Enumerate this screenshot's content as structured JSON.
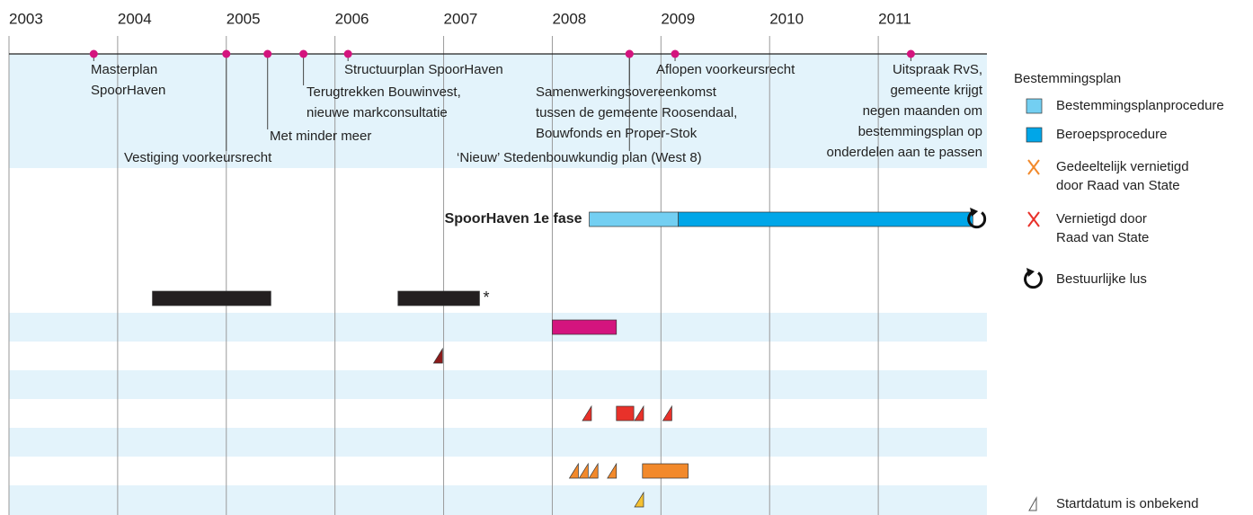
{
  "chart_data": {
    "type": "timeline",
    "xlim": [
      2003,
      2012
    ],
    "xticks": [
      2003,
      2004,
      2005,
      2006,
      2007,
      2008,
      2009,
      2010,
      2011
    ],
    "events": [
      {
        "x": 2003.78,
        "label": [
          "Masterplan",
          "SpoorHaven"
        ]
      },
      {
        "x": 2005.0,
        "label": [
          "Vestiging voorkeursrecht"
        ]
      },
      {
        "x": 2005.38,
        "label": [
          "Met minder meer"
        ]
      },
      {
        "x": 2005.71,
        "label": [
          "Terugtrekken Bouwinvest,",
          "nieuwe markconsultatie"
        ]
      },
      {
        "x": 2006.12,
        "label": [
          "Structuurplan SpoorHaven"
        ]
      },
      {
        "x": 2008.71,
        "label": [
          "Samenwerkingsovereenkomst",
          "tussen de gemeente Roosendaal,",
          "Bouwfonds en Proper-Stok"
        ]
      },
      {
        "x": 2008.71,
        "label": [
          "‘Nieuw’ Stedenbouwkundig plan (West 8)"
        ]
      },
      {
        "x": 2009.13,
        "label": [
          "Aflopen voorkeursrecht"
        ]
      },
      {
        "x": 2011.3,
        "label": [
          "Uitspraak RvS,",
          "gemeente krijgt",
          "negen maanden om",
          "bestemmingsplan op",
          "onderdelen aan te passen"
        ]
      }
    ],
    "rows": [
      {
        "label": "SpoorHaven 1e fase",
        "segments": [
          {
            "start": 2008.34,
            "end": 2009.16,
            "color": "#73cff2"
          },
          {
            "start": 2009.16,
            "end": 2011.87,
            "color": "#00a6e8"
          }
        ],
        "loop": 2011.91
      },
      {
        "segments": [
          {
            "start": 2004.32,
            "end": 2005.41,
            "color": "#231f20"
          },
          {
            "start": 2006.58,
            "end": 2007.33,
            "color": "#231f20"
          }
        ],
        "note": "*"
      },
      {
        "segments": [
          {
            "start": 2008.0,
            "end": 2008.59,
            "color": "#d4147e"
          }
        ]
      },
      {
        "unknown_start": [
          2006.99
        ],
        "color": "#8b1a1a"
      },
      {
        "segments": [
          {
            "start": 2008.59,
            "end": 2008.75,
            "color": "#e8312a"
          }
        ],
        "unknown_start": [
          2008.36,
          2008.84,
          2009.1
        ],
        "color": "#e8312a"
      },
      {
        "segments": [
          {
            "start": 2008.83,
            "end": 2009.25,
            "color": "#f2892b"
          }
        ],
        "unknown_start": [
          2008.24,
          2008.33,
          2008.42,
          2008.59
        ],
        "color": "#f2892b"
      },
      {
        "unknown_start": [
          2008.84
        ],
        "color": "#f5c132"
      }
    ],
    "legend": {
      "title": "Bestemmingsplan",
      "items": [
        {
          "label": [
            "Bestemmingsplanprocedure"
          ],
          "color": "#73cff2"
        },
        {
          "label": [
            "Beroepsprocedure"
          ],
          "color": "#00a6e8"
        },
        {
          "label": [
            "Gedeeltelijk vernietigd",
            "door Raad van State"
          ],
          "color": "#f2892b"
        },
        {
          "label": [
            "Vernietigd door",
            "Raad van State"
          ],
          "color": "#e8312a"
        },
        {
          "label": [
            "Bestuurlijke lus"
          ],
          "color": "#111111"
        },
        {
          "label": [
            "Startdatum is onbekend"
          ],
          "color": "#555555"
        }
      ]
    }
  }
}
